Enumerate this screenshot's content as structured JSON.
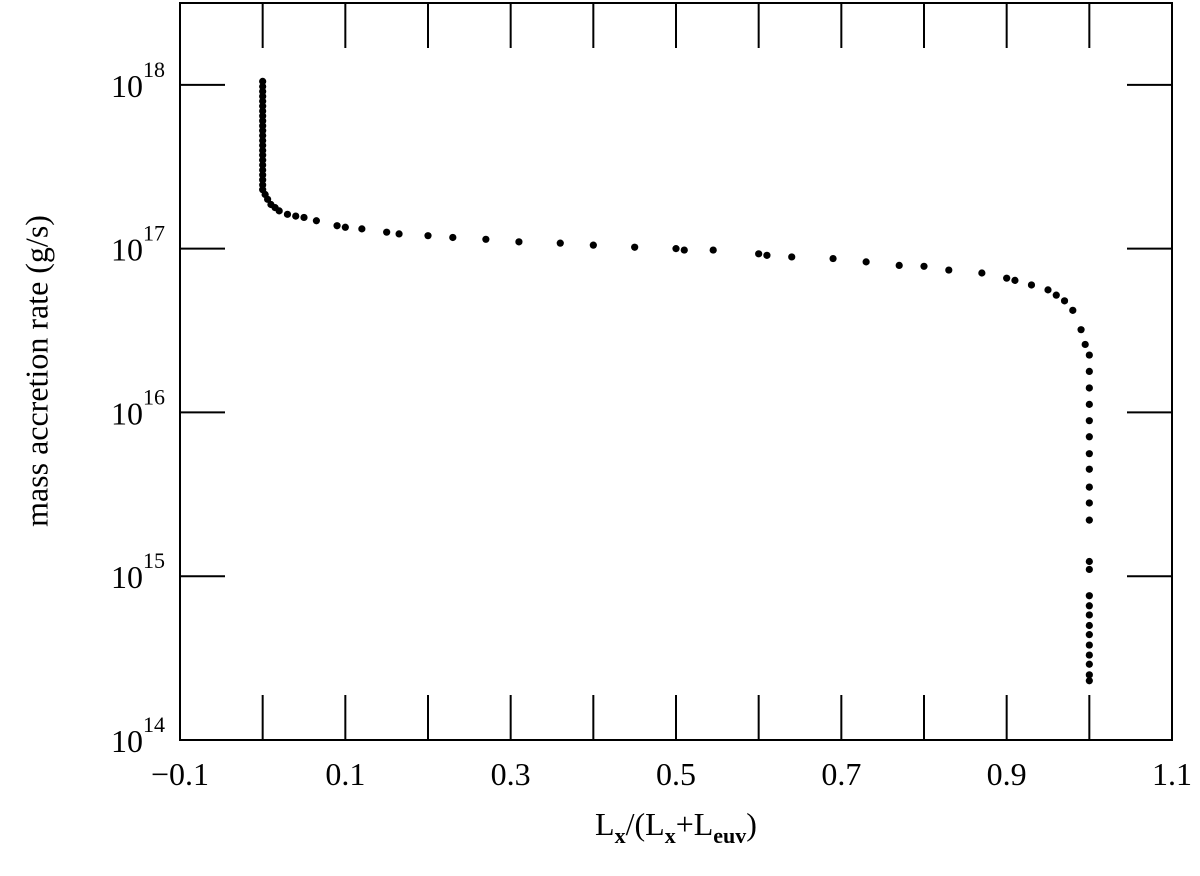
{
  "chart_data": {
    "type": "scatter",
    "ylabel": "mass accretion rate (g/s)",
    "xlabel": [
      "L",
      "x",
      "/(L",
      "x",
      "+L",
      "euv",
      ")"
    ],
    "xlim": [
      -0.1,
      1.1
    ],
    "ylim": [
      100000000000000.0,
      3.16e+18
    ],
    "log_y": true,
    "xticks": [
      {
        "value": -0.1,
        "label": "−0.1"
      },
      0.1,
      0.3,
      0.5,
      0.7,
      0.9,
      1.1
    ],
    "minor_xticks": [
      0,
      0.2,
      0.4,
      0.6,
      0.8,
      1
    ],
    "yticks": [
      {
        "value": 100000000000000.0,
        "label": "10",
        "exponent": "14"
      },
      {
        "value": 1000000000000000.0,
        "label": "10",
        "exponent": "15"
      },
      {
        "value": 1e+16,
        "label": "10",
        "exponent": "16"
      },
      {
        "value": 1e+17,
        "label": "10",
        "exponent": "17"
      },
      {
        "value": 1e+18,
        "label": "10",
        "exponent": "18"
      }
    ],
    "color": "#000000",
    "x": [
      0,
      0,
      0,
      0,
      0,
      0,
      0,
      0,
      0,
      0,
      0,
      0,
      0,
      0,
      0,
      0,
      0,
      0,
      0,
      0,
      0,
      0,
      0,
      0.003,
      0.006,
      0.01,
      0.015,
      0.02,
      0.03,
      0.04,
      0.05,
      0.065,
      0.09,
      0.1,
      0.12,
      0.15,
      0.165,
      0.2,
      0.23,
      0.27,
      0.31,
      0.36,
      0.4,
      0.45,
      0.5,
      0.51,
      0.545,
      0.6,
      0.61,
      0.64,
      0.69,
      0.73,
      0.77,
      0.8,
      0.83,
      0.87,
      0.9,
      0.91,
      0.93,
      0.95,
      0.96,
      0.97,
      0.98,
      0.99,
      0.995,
      1,
      1,
      1,
      1,
      1,
      1,
      1,
      1,
      1,
      1,
      1,
      1,
      1,
      1,
      1,
      1,
      1,
      1,
      1,
      1,
      1,
      1,
      1
    ],
    "y": [
      1.05e+18,
      9.77e+17,
      9.12e+17,
      8.51e+17,
      7.94e+17,
      7.41e+17,
      6.92e+17,
      6.46e+17,
      6.03e+17,
      5.62e+17,
      5.25e+17,
      4.9e+17,
      4.57e+17,
      4.27e+17,
      3.98e+17,
      3.72e+17,
      3.47e+17,
      3.24e+17,
      3.02e+17,
      2.82e+17,
      2.63e+17,
      2.45e+17,
      2.29e+17,
      2.14e+17,
      2e+17,
      1.86e+17,
      1.78e+17,
      1.7e+17,
      1.62e+17,
      1.58e+17,
      1.55e+17,
      1.48e+17,
      1.38e+17,
      1.35e+17,
      1.32e+17,
      1.26e+17,
      1.23e+17,
      1.2e+17,
      1.17e+17,
      1.14e+17,
      1.1e+17,
      1.08e+17,
      1.05e+17,
      1.02e+17,
      1e+17,
      9.8e+16,
      9.8e+16,
      9.3e+16,
      9.1e+16,
      8.9e+16,
      8.7e+16,
      8.3e+16,
      7.9e+16,
      7.8e+16,
      7.4e+16,
      7.1e+16,
      6.6e+16,
      6.4e+16,
      6e+16,
      5.6e+16,
      5.2e+16,
      4.8e+16,
      4.2e+16,
      3.2e+16,
      2.6e+16,
      2.24e+16,
      1.78e+16,
      1.41e+16,
      1.12e+16,
      8900000000000000.0,
      7100000000000000.0,
      5600000000000000.0,
      4500000000000000.0,
      3500000000000000.0,
      2800000000000000.0,
      2200000000000000.0,
      1230000000000000.0,
      1100000000000000.0,
      760000000000000.0,
      660000000000000.0,
      580000000000000.0,
      500000000000000.0,
      440000000000000.0,
      380000000000000.0,
      330000000000000.0,
      290000000000000.0,
      250000000000000.0,
      230000000000000.0
    ]
  }
}
